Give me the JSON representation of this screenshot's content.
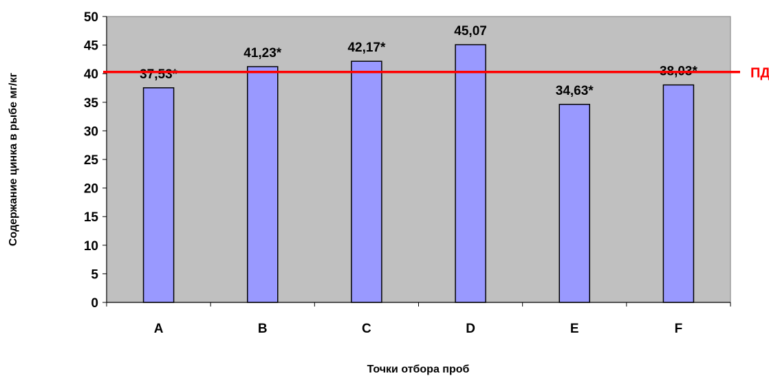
{
  "chart_data": {
    "type": "bar",
    "categories": [
      "A",
      "B",
      "C",
      "D",
      "E",
      "F"
    ],
    "values": [
      37.53,
      41.23,
      42.17,
      45.07,
      34.63,
      38.03
    ],
    "data_labels": [
      "37,53*",
      "41,23*",
      "42,17*",
      "45,07",
      "34,63*",
      "38,03*"
    ],
    "xlabel": "Точки отбора проб",
    "ylabel": "Содержание цинка в рыбе мг/кг",
    "ylim": [
      0,
      50
    ],
    "yticks": [
      0,
      5,
      10,
      15,
      20,
      25,
      30,
      35,
      40,
      45,
      50
    ],
    "ytick_labels": [
      "0",
      "5",
      "10",
      "15",
      "20",
      "25",
      "30",
      "35",
      "40",
      "45",
      "50"
    ],
    "grid": false,
    "reference_line": {
      "value": 40.3,
      "label": "ПДК",
      "color": "#ff0000"
    },
    "colors": {
      "bar_fill": "#9999ff",
      "bar_stroke": "#000000",
      "plot_bg": "#c0c0c0"
    }
  }
}
